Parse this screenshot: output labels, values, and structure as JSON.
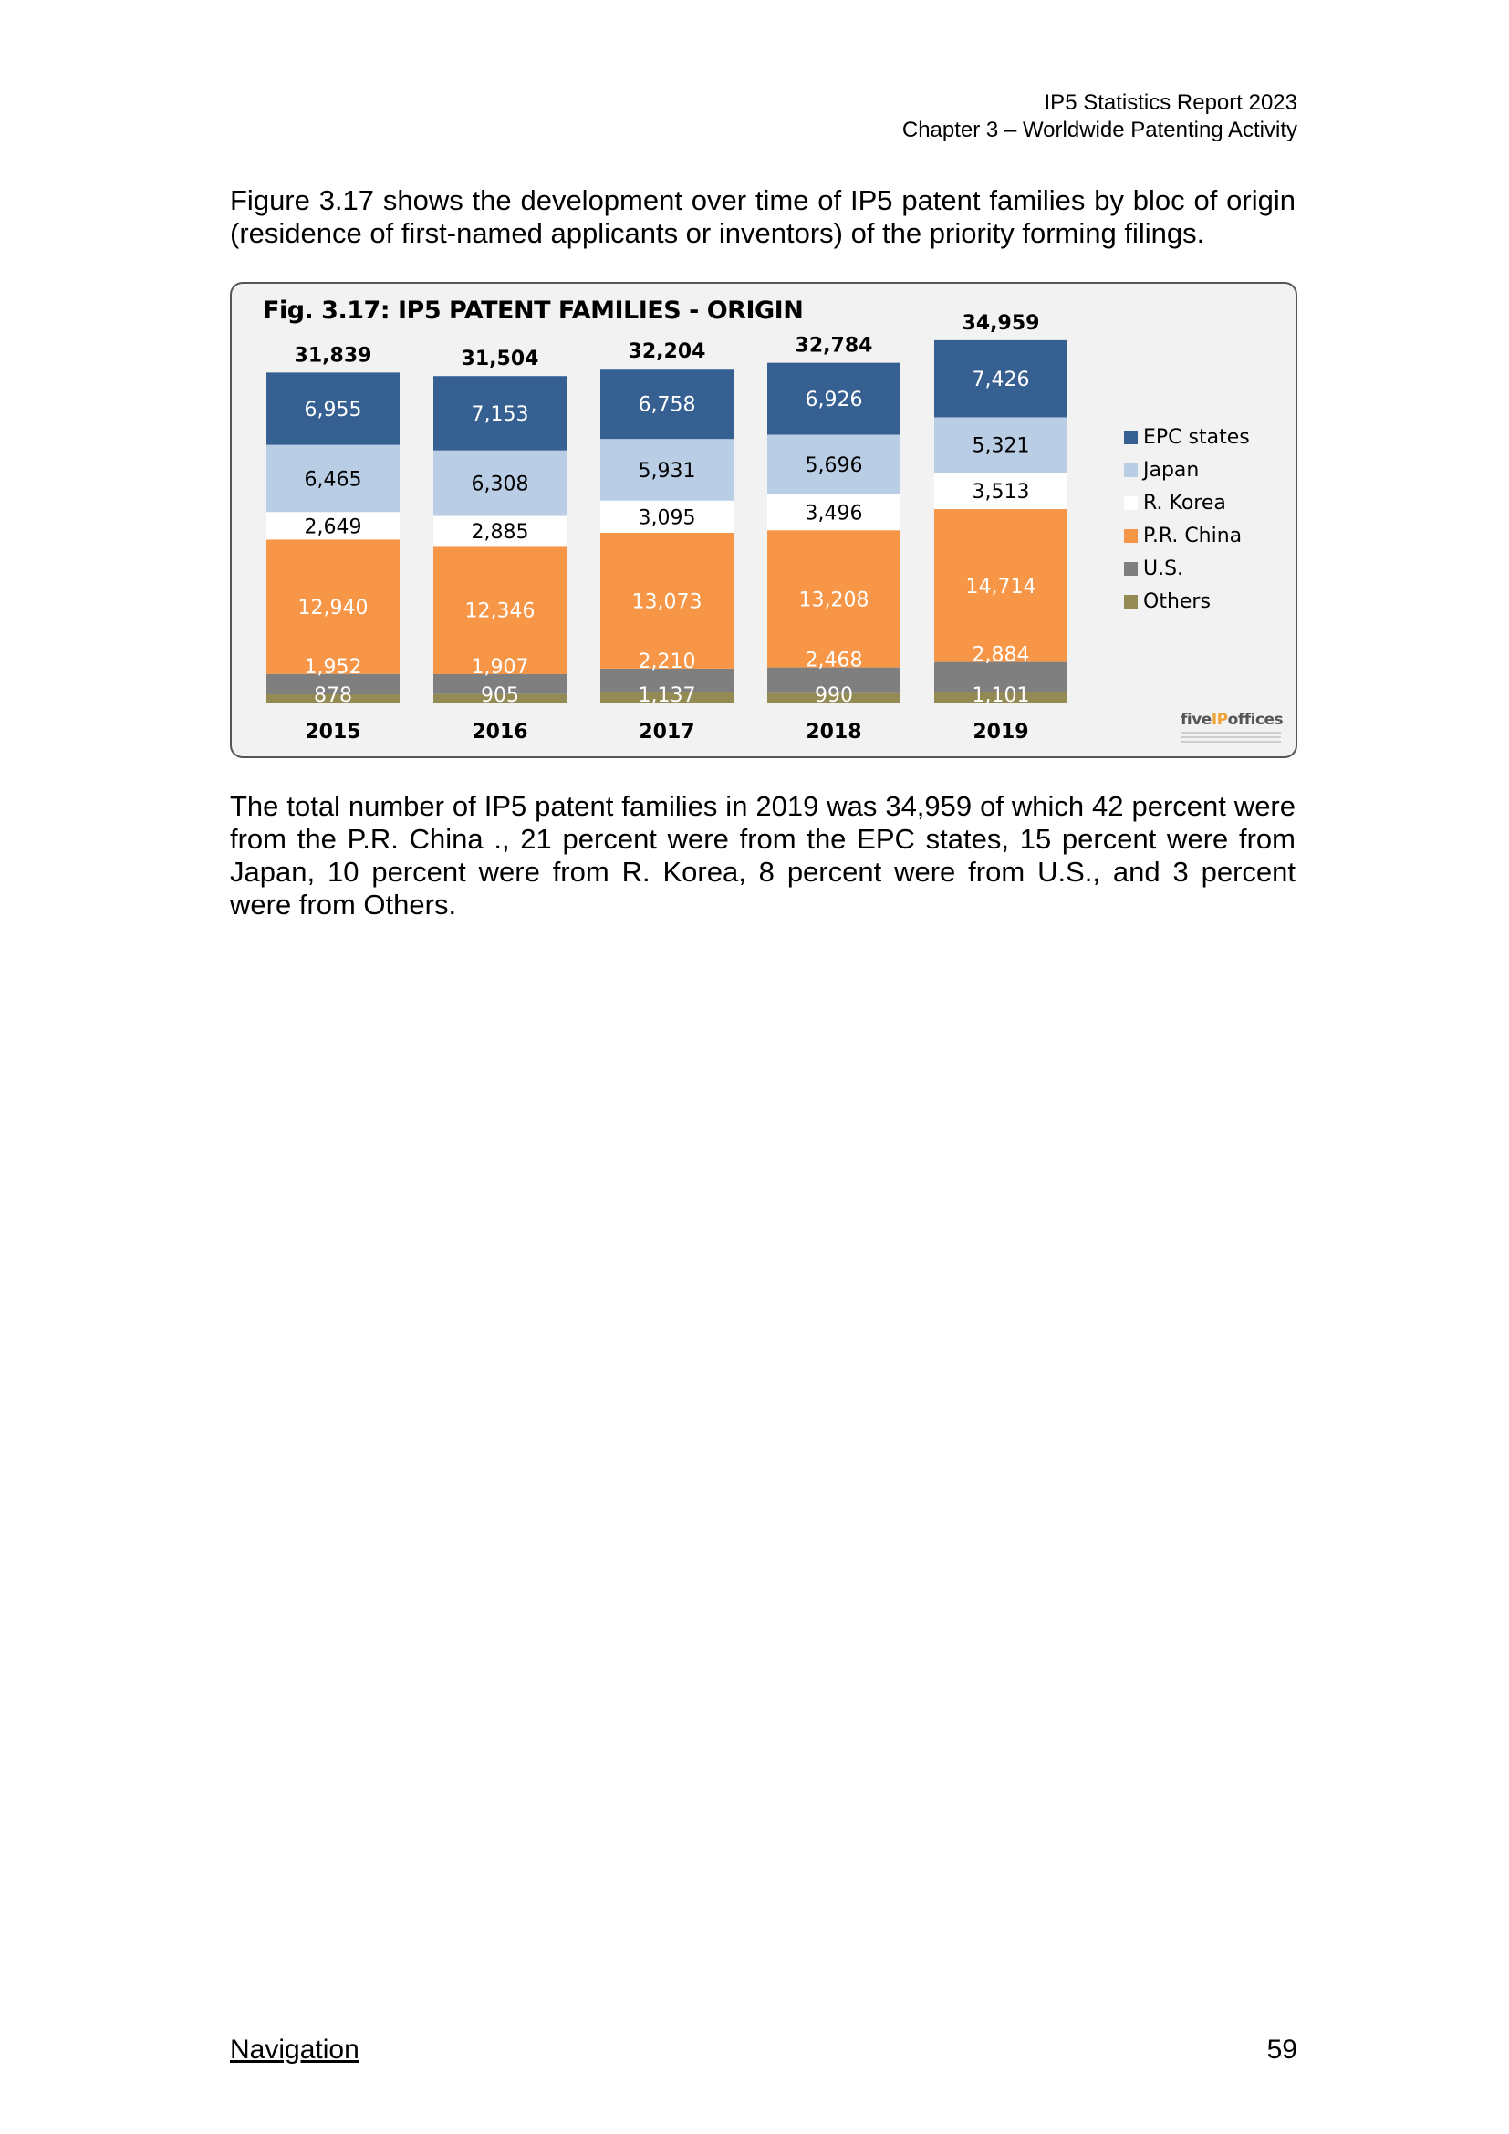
{
  "header": {
    "line1": "IP5 Statistics Report 2023",
    "line2": "Chapter 3 – Worldwide Patenting Activity"
  },
  "intro": "Figure 3.17 shows the development over time of IP5 patent families by bloc of origin (residence of first-named applicants or inventors) of the priority forming filings.",
  "figure": {
    "title": "Fig. 3.17: IP5 PATENT FAMILIES - ORIGIN",
    "logo_text_a": "five",
    "logo_text_b": "IP",
    "logo_text_c": "offices"
  },
  "summary": "The total number of IP5 patent families in 2019 was 34,959 of which 42 percent were from the P.R. China ., 21 percent were from the EPC states, 15 percent were from Japan, 10 percent were from R. Korea, 8 percent were from U.S., and 3 percent were from Others.",
  "footer": {
    "nav": "Navigation",
    "page": "59"
  },
  "chart_data": {
    "type": "bar",
    "stacked": true,
    "title": "Fig. 3.17: IP5 PATENT FAMILIES - ORIGIN",
    "categories": [
      "2015",
      "2016",
      "2017",
      "2018",
      "2019"
    ],
    "totals": [
      31839,
      31504,
      32204,
      32784,
      34959
    ],
    "total_labels": [
      "31,839",
      "31,504",
      "32,204",
      "32,784",
      "34,959"
    ],
    "series": [
      {
        "name": "Others",
        "color": "#948a54",
        "label_color": "#ffffff",
        "values": [
          878,
          905,
          1137,
          990,
          1101
        ],
        "labels": [
          "878",
          "905",
          "1,137",
          "990",
          "1,101"
        ]
      },
      {
        "name": "U.S.",
        "color": "#7f7f7f",
        "label_color": "#ffffff",
        "values": [
          1952,
          1907,
          2210,
          2468,
          2884
        ],
        "labels": [
          "1,952",
          "1,907",
          "2,210",
          "2,468",
          "2,884"
        ]
      },
      {
        "name": "P.R. China",
        "color": "#f79646",
        "label_color": "#ffffff",
        "values": [
          12940,
          12346,
          13073,
          13208,
          14714
        ],
        "labels": [
          "12,940",
          "12,346",
          "13,073",
          "13,208",
          "14,714"
        ]
      },
      {
        "name": "R. Korea",
        "color": "#ffffff",
        "label_color": "#000000",
        "values": [
          2649,
          2885,
          3095,
          3496,
          3513
        ],
        "labels": [
          "2,649",
          "2,885",
          "3,095",
          "3,496",
          "3,513"
        ]
      },
      {
        "name": "Japan",
        "color": "#b9cde5",
        "label_color": "#000000",
        "values": [
          6465,
          6308,
          5931,
          5696,
          5321
        ],
        "labels": [
          "6,465",
          "6,308",
          "5,931",
          "5,696",
          "5,321"
        ]
      },
      {
        "name": "EPC states",
        "color": "#376092",
        "label_color": "#ffffff",
        "values": [
          6955,
          7153,
          6758,
          6926,
          7426
        ],
        "labels": [
          "6,955",
          "7,153",
          "6,758",
          "6,926",
          "7,426"
        ]
      }
    ],
    "legend": [
      "EPC states",
      "Japan",
      "R. Korea",
      "P.R. China",
      "U.S.",
      "Others"
    ],
    "legend_position": "right",
    "grid": false,
    "ylim": [
      0,
      36000
    ]
  }
}
